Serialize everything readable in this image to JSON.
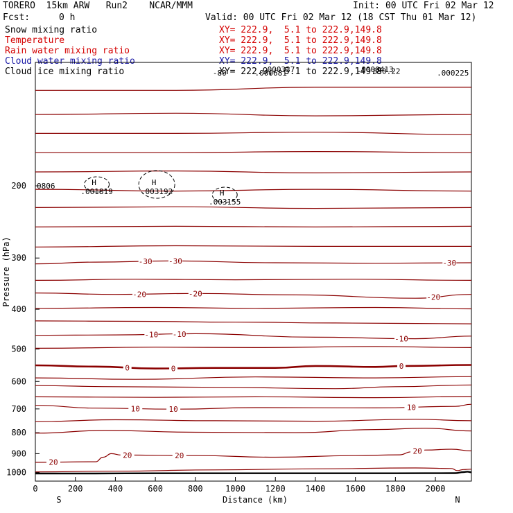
{
  "header": {
    "model": "TORERO  15km ARW   Run2    NCAR/MMM",
    "init": "Init: 00 UTC Fri 02 Mar 12",
    "fcst_label": "Fcst:",
    "fcst_value": "0 h",
    "valid": "Valid: 00 UTC Fri 02 Mar 12 (18 CST Thu 01 Mar 12)"
  },
  "legend": [
    {
      "name": "Snow mixing ratio",
      "xy": "XY= 222.9,  5.1 to 222.9,149.8",
      "color": "#000000"
    },
    {
      "name": "Temperature",
      "xy": "XY= 222.9,  5.1 to 222.9,149.8",
      "color": "#d40000"
    },
    {
      "name": "Rain water mixing ratio",
      "xy": "XY= 222.9,  5.1 to 222.9,149.8",
      "color": "#d40000"
    },
    {
      "name": "Cloud water mixing ratio",
      "xy": "XY= 222.9,  5.1 to 222.9,149.8",
      "color": "#1a1aa6"
    },
    {
      "name": "Cloud ice mixing ratio",
      "xy": "XY= 222.9,  5.1 to 222.9,149.8",
      "color": "#000000"
    }
  ],
  "chart_data": {
    "type": "line",
    "xlabel": "Distance (km)",
    "ylabel": "Pressure (hPa)",
    "xlim": [
      0,
      2180
    ],
    "ylim": [
      1050,
      100
    ],
    "x_ticks": [
      0,
      200,
      400,
      600,
      800,
      1000,
      1200,
      1400,
      1600,
      1800,
      2000
    ],
    "y_ticks": [
      200,
      300,
      400,
      500,
      600,
      700,
      800,
      900,
      1000
    ],
    "x_end_labels": {
      "left": "S",
      "right": "N"
    },
    "colors": {
      "temperature": "#8b0000",
      "freezing": "#8b0000",
      "terrain": "#000000",
      "ice": "#000000"
    },
    "temperature_isotherms": [
      {
        "p": [
          117,
          117,
          115,
          115
        ],
        "x": [
          0,
          700,
          1400,
          2180
        ],
        "label": ""
      },
      {
        "p": [
          134,
          133,
          135,
          134
        ],
        "x": [
          0,
          700,
          1400,
          2180
        ],
        "label": ""
      },
      {
        "p": [
          149,
          149,
          148,
          150
        ],
        "x": [
          0,
          700,
          1400,
          2180
        ],
        "label": ""
      },
      {
        "p": [
          166,
          166,
          165,
          166
        ],
        "x": [
          0,
          700,
          1400,
          2180
        ],
        "label": ""
      },
      {
        "p": [
          185,
          184,
          186,
          185
        ],
        "x": [
          0,
          700,
          1400,
          2180
        ],
        "label": ""
      },
      {
        "p": [
          204,
          206,
          204,
          206
        ],
        "x": [
          0,
          700,
          1400,
          2180
        ],
        "label": ""
      },
      {
        "p": [
          226,
          225,
          227,
          226
        ],
        "x": [
          0,
          700,
          1400,
          2180
        ],
        "label": ""
      },
      {
        "p": [
          252,
          251,
          252,
          251
        ],
        "x": [
          0,
          700,
          1400,
          2180
        ],
        "label": ""
      },
      {
        "p": [
          282,
          280,
          281,
          281
        ],
        "x": [
          0,
          700,
          1400,
          2180
        ],
        "label": ""
      },
      {
        "p": [
          310,
          307,
          305,
          308,
          309,
          308
        ],
        "x": [
          0,
          300,
          680,
          1200,
          1700,
          2180
        ],
        "label": "-30",
        "labels_at": [
          550,
          700,
          2070
        ]
      },
      {
        "p": [
          340,
          338,
          339,
          338,
          340
        ],
        "x": [
          0,
          500,
          1000,
          1600,
          2180
        ],
        "label": ""
      },
      {
        "p": [
          365,
          368,
          366,
          369,
          376,
          368
        ],
        "x": [
          0,
          400,
          800,
          1300,
          1900,
          2180
        ],
        "label": "-20",
        "labels_at": [
          520,
          800,
          1990
        ]
      },
      {
        "p": [
          398,
          396,
          398,
          396,
          399
        ],
        "x": [
          0,
          600,
          1100,
          1700,
          2180
        ],
        "label": ""
      },
      {
        "p": [
          427,
          428,
          430,
          432,
          434
        ],
        "x": [
          0,
          500,
          1000,
          1500,
          2180
        ],
        "label": ""
      },
      {
        "p": [
          463,
          462,
          459,
          468,
          472,
          465
        ],
        "x": [
          0,
          400,
          800,
          1400,
          1900,
          2180
        ],
        "label": "-10",
        "labels_at": [
          580,
          720,
          1830
        ]
      },
      {
        "p": [
          498,
          495,
          496,
          493,
          496
        ],
        "x": [
          0,
          600,
          1100,
          1700,
          2180
        ],
        "label": ""
      },
      {
        "p": [
          588,
          593,
          585,
          588,
          584
        ],
        "x": [
          0,
          500,
          1100,
          1700,
          2180
        ],
        "label": ""
      },
      {
        "p": [
          614,
          618,
          620,
          625,
          618,
          612
        ],
        "x": [
          0,
          400,
          900,
          1500,
          1800,
          2180
        ],
        "label": ""
      },
      {
        "p": [
          654,
          656,
          654,
          657,
          653
        ],
        "x": [
          0,
          600,
          1100,
          1700,
          2180
        ],
        "label": ""
      },
      {
        "p": [
          686,
          697,
          701,
          695,
          696,
          690,
          682
        ],
        "x": [
          0,
          300,
          700,
          1100,
          1700,
          2100,
          2180
        ],
        "label": "10",
        "labels_at": [
          500,
          690,
          1880
        ]
      },
      {
        "p": [
          752,
          744,
          748,
          750,
          742,
          748
        ],
        "x": [
          0,
          400,
          900,
          1400,
          1900,
          2180
        ],
        "label": ""
      },
      {
        "p": [
          802,
          790,
          798,
          800,
          786,
          780,
          792
        ],
        "x": [
          0,
          350,
          800,
          1300,
          1700,
          1950,
          2180
        ],
        "label": ""
      },
      {
        "p": [
          945,
          942,
          918,
          900,
          907,
          910,
          918,
          910,
          906,
          891,
          882,
          878,
          886
        ],
        "x": [
          0,
          300,
          340,
          380,
          430,
          800,
          1200,
          1600,
          1820,
          1880,
          1950,
          2080,
          2180
        ],
        "label": "20",
        "labels_at": [
          90,
          460,
          720,
          1910
        ]
      },
      {
        "p": [
          997,
          993,
          986,
          980,
          975,
          978,
          990,
          984,
          982
        ],
        "x": [
          0,
          400,
          900,
          1400,
          1900,
          2080,
          2110,
          2140,
          2180
        ],
        "label": ""
      }
    ],
    "freezing_level": {
      "x": [
        0,
        300,
        600,
        900,
        1200,
        1400,
        1700,
        1850,
        2180
      ],
      "p": [
        548,
        552,
        558,
        556,
        556,
        550,
        553,
        550,
        547
      ],
      "label": "0",
      "labels_at": [
        460,
        690,
        1830
      ]
    },
    "terrain": {
      "x": [
        0,
        300,
        600,
        900,
        1200,
        1500,
        1800,
        2100,
        2140,
        2160,
        2180
      ],
      "p": [
        1006,
        1006,
        1005,
        1005,
        1005,
        1005,
        1005,
        1004,
        998,
        996,
        999
      ]
    },
    "cloud_ice_maxima": [
      {
        "label": "H",
        "value": ".001819",
        "x": 300,
        "p": 200
      },
      {
        "label": "H",
        "value": ".003192",
        "x": 600,
        "p": 200
      },
      {
        "label": "H",
        "value": ".003155",
        "x": 940,
        "p": 212
      }
    ],
    "top_labels": [
      {
        "text": "0806",
        "x": 0,
        "p": 200
      },
      {
        "text": "-80",
        "x": 880,
        "p": 106
      },
      {
        "text": ".000681",
        "x": 1090,
        "p": 106
      },
      {
        "text": ".000337",
        "x": 1130,
        "p": 104
      },
      {
        "text": ".0000413",
        "x": 1600,
        "p": 104
      },
      {
        "text": "890.22",
        "x": 1680,
        "p": 105
      },
      {
        "text": ".000225",
        "x": 2000,
        "p": 106
      }
    ]
  }
}
